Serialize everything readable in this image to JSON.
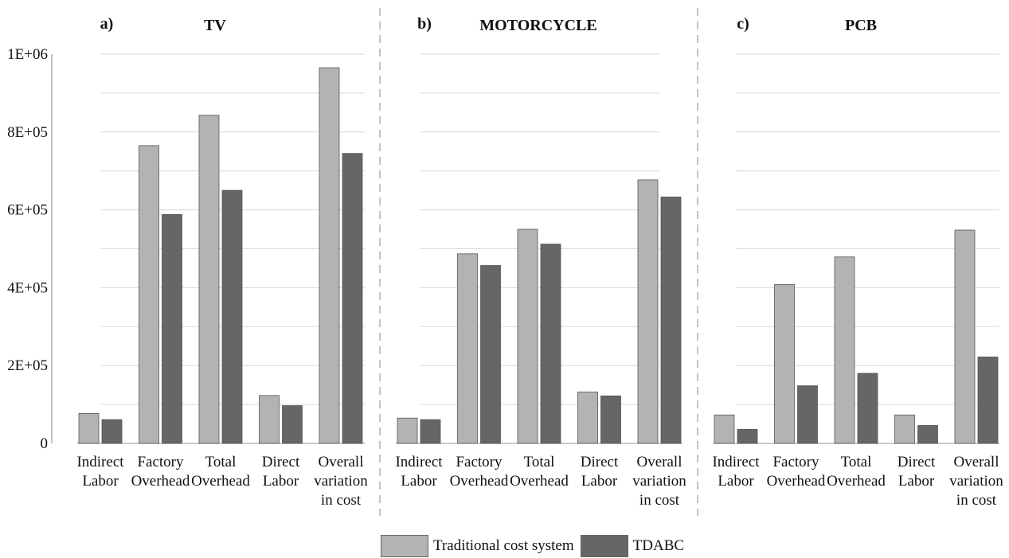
{
  "chart_data": {
    "type": "bar",
    "y_axis": {
      "ticks": [
        0,
        200000,
        400000,
        600000,
        800000,
        1000000
      ],
      "tick_labels": [
        "0",
        "2E+05",
        "4E+05",
        "6E+05",
        "8E+05",
        "1E+06"
      ],
      "ylim": [
        0,
        1000000
      ],
      "minor_gridlines": true
    },
    "categories": [
      [
        "Indirect",
        "Labor"
      ],
      [
        "Factory",
        "Overhead"
      ],
      [
        "Total",
        "Overhead"
      ],
      [
        "Direct",
        "Labor"
      ],
      [
        "Overall",
        "variation",
        "in cost"
      ]
    ],
    "panels": [
      {
        "letter": "a)",
        "title": "TV",
        "series": [
          {
            "name": "Traditional cost system",
            "values": [
              77000,
              765000,
              843000,
              123000,
              965000
            ]
          },
          {
            "name": "TDABC",
            "values": [
              61000,
              588000,
              650000,
              97000,
              745000
            ]
          }
        ]
      },
      {
        "letter": "b)",
        "title": "MOTORCYCLE",
        "series": [
          {
            "name": "Traditional cost system",
            "values": [
              65000,
              487000,
              550000,
              132000,
              677000
            ]
          },
          {
            "name": "TDABC",
            "values": [
              61000,
              457000,
              512000,
              122000,
              633000
            ]
          }
        ]
      },
      {
        "letter": "c)",
        "title": "PCB",
        "series": [
          {
            "name": "Traditional cost system",
            "values": [
              73000,
              408000,
              479000,
              73000,
              548000
            ]
          },
          {
            "name": "TDABC",
            "values": [
              36000,
              148000,
              180000,
              46000,
              222000
            ]
          }
        ]
      }
    ],
    "legend": {
      "position": "bottom-center",
      "entries": [
        {
          "name": "Traditional cost system",
          "color": "#b3b3b3"
        },
        {
          "name": "TDABC",
          "color": "#666666"
        }
      ]
    },
    "colors": {
      "series0": "#b3b3b3",
      "series1": "#666666"
    }
  }
}
